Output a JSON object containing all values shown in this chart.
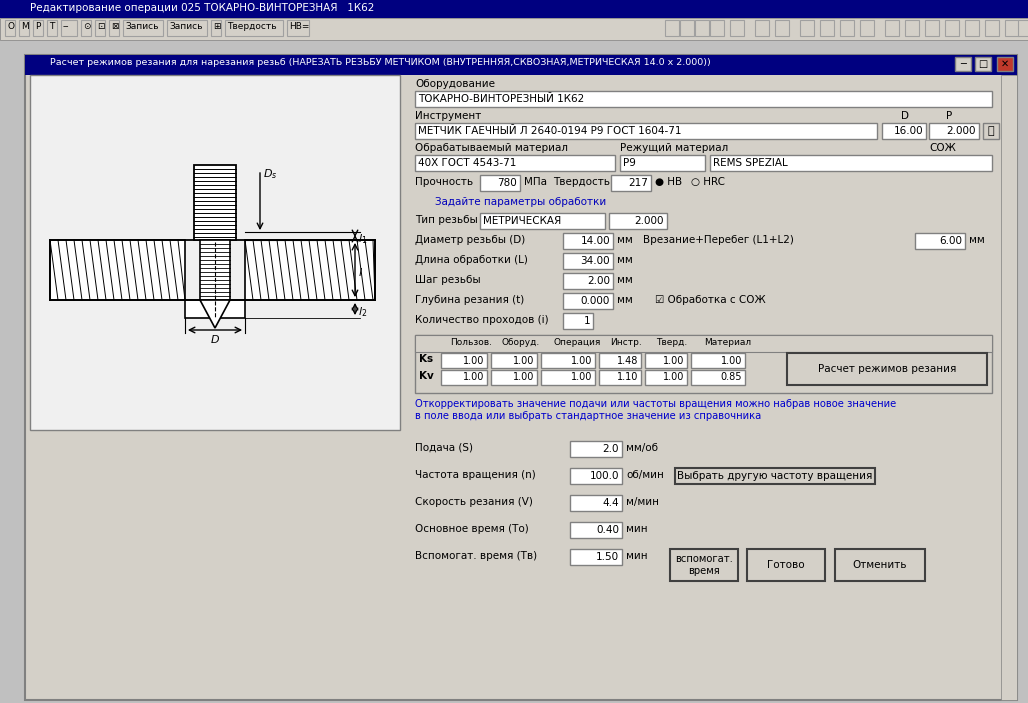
{
  "title_bar": "Редактирование операции 025 ТОКАРНО-ВИНТОРЕЗНАЯ   1К62",
  "dialog_title": "Расчет режимов резания для нарезания резьб (НАРЕЗАТЬ РЕЗЬБУ МЕТЧИКОМ (ВНУТРЕННЯЯ,СКВОЗНАЯ,МЕТРИЧЕСКАЯ 14.0 x 2.000))",
  "bg_color": "#c0c0c0",
  "dialog_bg": "#d4d0c8",
  "oborudovanie": "Оборудование",
  "oborudovanie_val": "ТОКАРНО-ВИНТОРЕЗНЫЙ 1К62",
  "instrument": "Инструмент",
  "D_label": "D",
  "P_label": "P",
  "instrument_val": "МЕТЧИК ГАЕЧНЫЙ Л 2640-0194 Р9 ГОСТ 1604-71",
  "D_val": "16.00",
  "P_val": "2.000",
  "obrab_mat": "Обрабатываемый материал",
  "rej_mat": "Режущий материал",
  "soj_label": "СОЖ",
  "mat_val": "40Х ГОСТ 4543-71",
  "rej_val": "Р9",
  "soj_val": "REMS SPEZIAL",
  "prochnost": "Прочность",
  "prochnost_val": "780",
  "mpa": "МПа",
  "tverdost": "Твердость",
  "tverdost_val": "217",
  "hb": "● НВ",
  "hrc": "○ HRC",
  "zadaite": "Задайте параметры обработки",
  "tip_rezby": "Тип резьбы",
  "tip_val": "МЕТРИЧЕСКАЯ",
  "tip_val2": "2.000",
  "diametr": "Диаметр резьбы (D)",
  "diametr_val": "14.00",
  "mm1": "мм",
  "vrezanie": "Врезание+Перебег (L1+L2)",
  "vrez_val": "6.00",
  "mm_vrez": "мм",
  "dlina": "Длина обработки (L)",
  "dlina_val": "34.00",
  "mm2": "мм",
  "shag": "Шаг резьбы",
  "shag_val": "2.00",
  "mm3": "мм",
  "glubina": "Глубина резания (t)",
  "glubina_val": "0.000",
  "mm4": "мм",
  "obrabotka_soj": "☑ Обработка с СОЖ",
  "kolichestvo": "Количество проходов (i)",
  "kol_val": "1",
  "col_polzov": "Пользов.",
  "col_oborud": "Оборуд.",
  "col_operacia": "Операция",
  "col_instr": "Инстр.",
  "col_tverd": "Тверд.",
  "col_material": "Материал",
  "ks_label": "Ks",
  "kv_label": "Kv",
  "ks_polzov": "1.00",
  "ks_oborud": "1.00",
  "ks_operacia": "1.00",
  "ks_instr": "1.48",
  "ks_tverd": "1.00",
  "ks_material": "1.00",
  "kv_polzov": "1.00",
  "kv_oborud": "1.00",
  "kv_operacia": "1.00",
  "kv_instr": "1.10",
  "kv_tverd": "1.00",
  "kv_material": "0.85",
  "btn_raschet": "Расчет режимов резания",
  "hint_text": "Откорректировать значение подачи или частоты вращения можно набрав новое значение\nв поле ввода или выбрать стандартное значение из справочника",
  "podacha": "Подача (S)",
  "podacha_val": "2.0",
  "mm_ob": "мм/об",
  "chastota": "Частота вращения (n)",
  "chastota_val": "100.0",
  "ob_min": "об/мин",
  "btn_chastota": "Выбрать другую частоту вращения",
  "skorost": "Скорость резания (V)",
  "skorost_val": "4.4",
  "m_min": "м/мин",
  "osnovnoe": "Основное время (То)",
  "osnov_val": "0.40",
  "min1": "мин",
  "vspomog": "Вспомогат. время (Тв)",
  "vspomog_val": "1.50",
  "min2": "мин",
  "btn_vspomogate": "вспомогат.\nвремя",
  "btn_gotovo": "Готово",
  "btn_otmenit": "Отменить"
}
